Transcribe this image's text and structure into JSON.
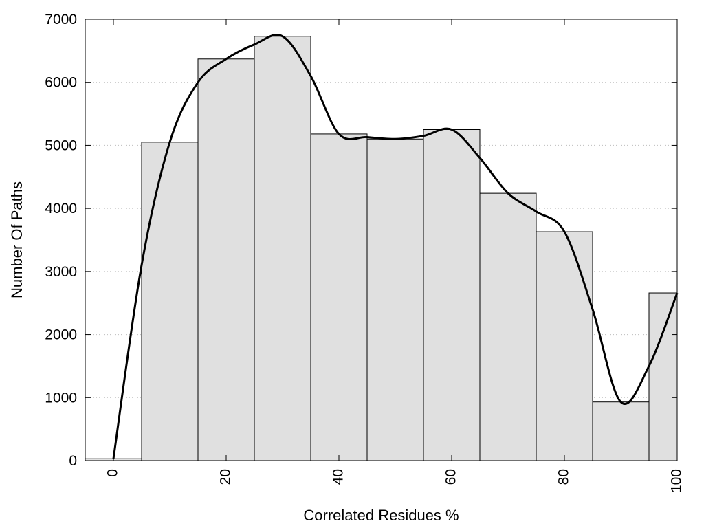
{
  "chart_data": {
    "type": "bar",
    "title": "",
    "xlabel": "Correlated Residues %",
    "ylabel": "Number Of Paths",
    "xlim": [
      -5,
      100
    ],
    "ylim": [
      0,
      7000
    ],
    "x_ticks": [
      0,
      20,
      40,
      60,
      80,
      100
    ],
    "y_ticks": [
      0,
      1000,
      2000,
      3000,
      4000,
      5000,
      6000,
      7000
    ],
    "grid": "horizontal-dotted",
    "bin_width": 10,
    "bins": [
      {
        "center": 0,
        "value": 30
      },
      {
        "center": 10,
        "value": 5050
      },
      {
        "center": 20,
        "value": 6370
      },
      {
        "center": 30,
        "value": 6730
      },
      {
        "center": 40,
        "value": 5180
      },
      {
        "center": 50,
        "value": 5100
      },
      {
        "center": 60,
        "value": 5250
      },
      {
        "center": 70,
        "value": 4240
      },
      {
        "center": 80,
        "value": 3630
      },
      {
        "center": 90,
        "value": 930
      },
      {
        "center": 100,
        "value": 2660
      }
    ],
    "curve": {
      "type": "line",
      "x": [
        0,
        5,
        10,
        15,
        20,
        25,
        30,
        35,
        40,
        45,
        50,
        55,
        60,
        65,
        70,
        75,
        80,
        85,
        90,
        95,
        100
      ],
      "y": [
        30,
        3100,
        5050,
        6000,
        6370,
        6600,
        6730,
        6100,
        5180,
        5130,
        5100,
        5150,
        5250,
        4800,
        4240,
        3950,
        3630,
        2400,
        930,
        1500,
        2660
      ]
    },
    "colors": {
      "bar_fill": "#e0e0e0",
      "bar_stroke": "#000000",
      "curve": "#000000",
      "grid": "#bdbdbd"
    }
  }
}
